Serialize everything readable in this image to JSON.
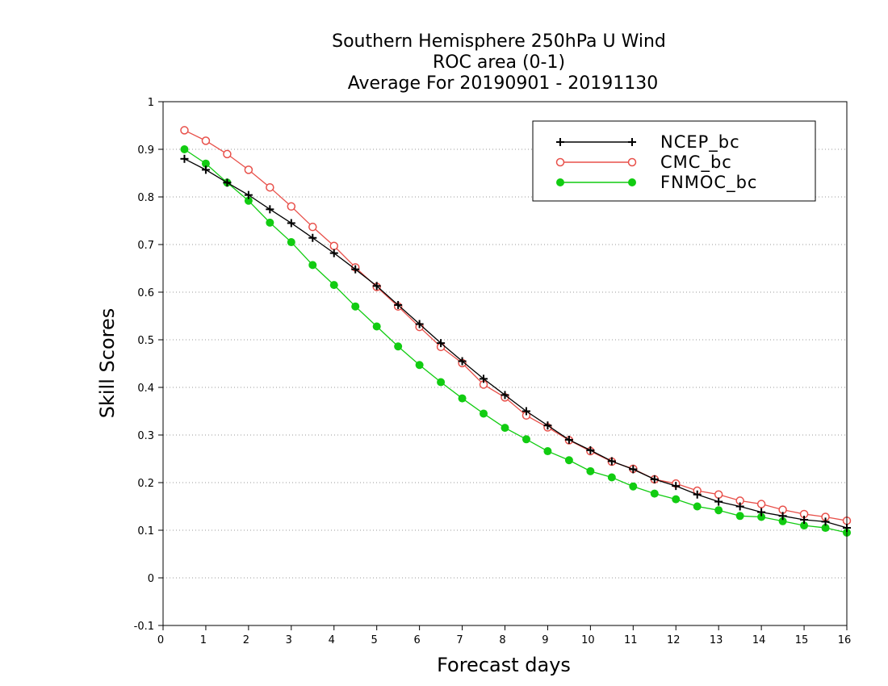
{
  "chart_data": {
    "type": "line",
    "title": [
      "Southern Hemisphere 250hPa U Wind",
      "ROC area (0-1)",
      "Average For 20190901 - 20191130"
    ],
    "xlabel": "Forecast days",
    "ylabel": "Skill Scores",
    "xlim": [
      0,
      16
    ],
    "ylim": [
      -0.1,
      1
    ],
    "xticks": [
      0,
      1,
      2,
      3,
      4,
      5,
      6,
      7,
      8,
      9,
      10,
      11,
      12,
      13,
      14,
      15,
      16
    ],
    "yticks": [
      -0.1,
      0,
      0.1,
      0.2,
      0.3,
      0.4,
      0.5,
      0.6,
      0.7,
      0.8,
      0.9,
      1
    ],
    "ytick_labels": [
      "-0.1",
      "0",
      "0.1",
      "0.2",
      "0.3",
      "0.4",
      "0.5",
      "0.6",
      "0.7",
      "0.8",
      "0.9",
      "1"
    ],
    "grid": "horizontal dotted",
    "legend_position": "top-right",
    "x": [
      0.5,
      1,
      1.5,
      2,
      2.5,
      3,
      3.5,
      4,
      4.5,
      5,
      5.5,
      6,
      6.5,
      7,
      7.5,
      8,
      8.5,
      9,
      9.5,
      10,
      10.5,
      11,
      11.5,
      12,
      12.5,
      13,
      13.5,
      14,
      14.5,
      15,
      15.5,
      16
    ],
    "series": [
      {
        "name": "NCEP_bc",
        "color": "#000000",
        "marker": "plus",
        "values": [
          0.88,
          0.857,
          0.83,
          0.804,
          0.774,
          0.745,
          0.714,
          0.682,
          0.648,
          0.613,
          0.573,
          0.533,
          0.493,
          0.455,
          0.418,
          0.384,
          0.35,
          0.32,
          0.29,
          0.268,
          0.245,
          0.228,
          0.207,
          0.193,
          0.175,
          0.16,
          0.15,
          0.138,
          0.13,
          0.122,
          0.118,
          0.105
        ]
      },
      {
        "name": "CMC_bc",
        "color": "#e8504a",
        "marker": "open-circle",
        "values": [
          0.94,
          0.918,
          0.89,
          0.857,
          0.82,
          0.78,
          0.737,
          0.697,
          0.652,
          0.611,
          0.57,
          0.527,
          0.485,
          0.451,
          0.406,
          0.379,
          0.341,
          0.316,
          0.289,
          0.266,
          0.244,
          0.229,
          0.207,
          0.198,
          0.183,
          0.175,
          0.162,
          0.155,
          0.143,
          0.134,
          0.128,
          0.12
        ]
      },
      {
        "name": "FNMOC_bc",
        "color": "#11cc11",
        "marker": "filled-circle",
        "values": [
          0.9,
          0.87,
          0.83,
          0.792,
          0.746,
          0.705,
          0.657,
          0.615,
          0.57,
          0.528,
          0.486,
          0.447,
          0.411,
          0.377,
          0.345,
          0.315,
          0.291,
          0.266,
          0.247,
          0.224,
          0.211,
          0.192,
          0.177,
          0.165,
          0.15,
          0.142,
          0.13,
          0.128,
          0.119,
          0.11,
          0.105,
          0.095
        ]
      }
    ]
  }
}
